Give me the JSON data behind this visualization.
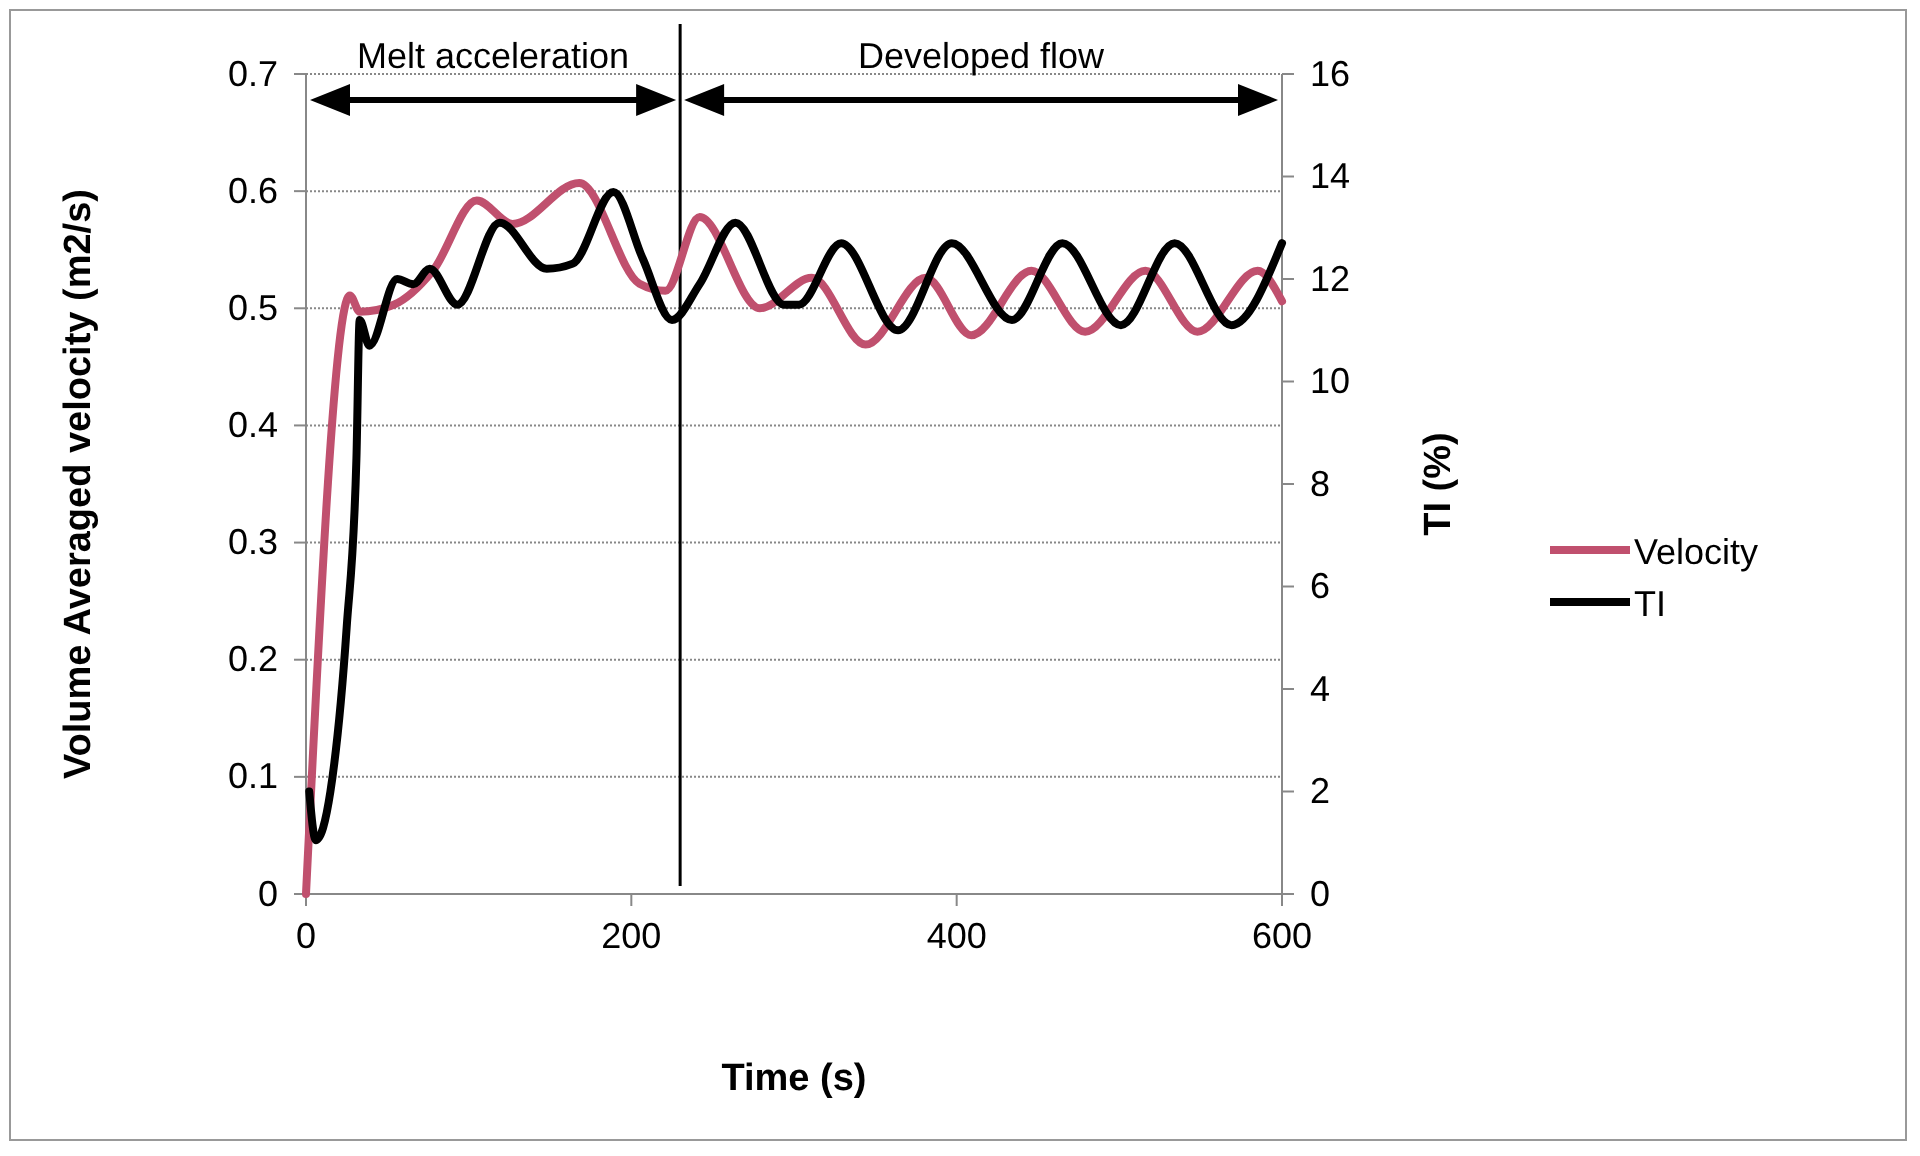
{
  "chart_data": {
    "type": "line",
    "xlabel": "Time (s)",
    "ylabel": "Volume Averaged velocity (m2/s)",
    "y2label": "TI (%)",
    "xlim": [
      0,
      600
    ],
    "xticks": [
      0,
      200,
      400,
      600
    ],
    "ylim": [
      0,
      0.7
    ],
    "yticks": [
      0,
      0.1,
      0.2,
      0.3,
      0.4,
      0.5,
      0.6,
      0.7
    ],
    "y2lim": [
      0,
      16
    ],
    "y2ticks": [
      0,
      2,
      4,
      6,
      8,
      10,
      12,
      14,
      16
    ],
    "grid": "y",
    "legend": "right",
    "marker": "none",
    "line_style": "solid",
    "ref_lines": [
      {
        "axis": "x",
        "value": 230,
        "color": "#000000"
      }
    ],
    "annotations": [
      "Melt acceleration",
      "Developed flow"
    ],
    "series": [
      {
        "name": "Velocity",
        "color": "#c0506e",
        "x": [
          0,
          27,
          33,
          54,
          78,
          105,
          127,
          168,
          205,
          221,
          242,
          279,
          311,
          344,
          381,
          409,
          446,
          479,
          516,
          548,
          585,
          600
        ],
        "values": [
          0,
          0.511,
          0.497,
          0.503,
          0.532,
          0.592,
          0.572,
          0.607,
          0.521,
          0.515,
          0.578,
          0.5,
          0.526,
          0.469,
          0.526,
          0.477,
          0.532,
          0.48,
          0.532,
          0.48,
          0.532,
          0.506
        ]
      },
      {
        "name": "TI",
        "color": "#000000",
        "axis": "y2",
        "x": [
          2,
          6,
          15,
          25,
          31,
          33,
          39,
          56,
          66,
          76,
          93,
          119,
          148,
          164,
          189,
          207,
          225,
          242,
          264,
          294,
          303,
          329,
          364,
          397,
          434,
          465,
          501,
          534,
          569,
          600
        ],
        "values": [
          2.0,
          1.05,
          2.0,
          5.2,
          8.5,
          11.2,
          10.7,
          12.0,
          11.9,
          12.2,
          11.5,
          13.1,
          12.2,
          12.3,
          13.7,
          12.4,
          11.2,
          11.9,
          13.1,
          11.5,
          11.5,
          12.7,
          11.0,
          12.7,
          11.2,
          12.7,
          11.1,
          12.7,
          11.1,
          12.7
        ]
      }
    ]
  }
}
